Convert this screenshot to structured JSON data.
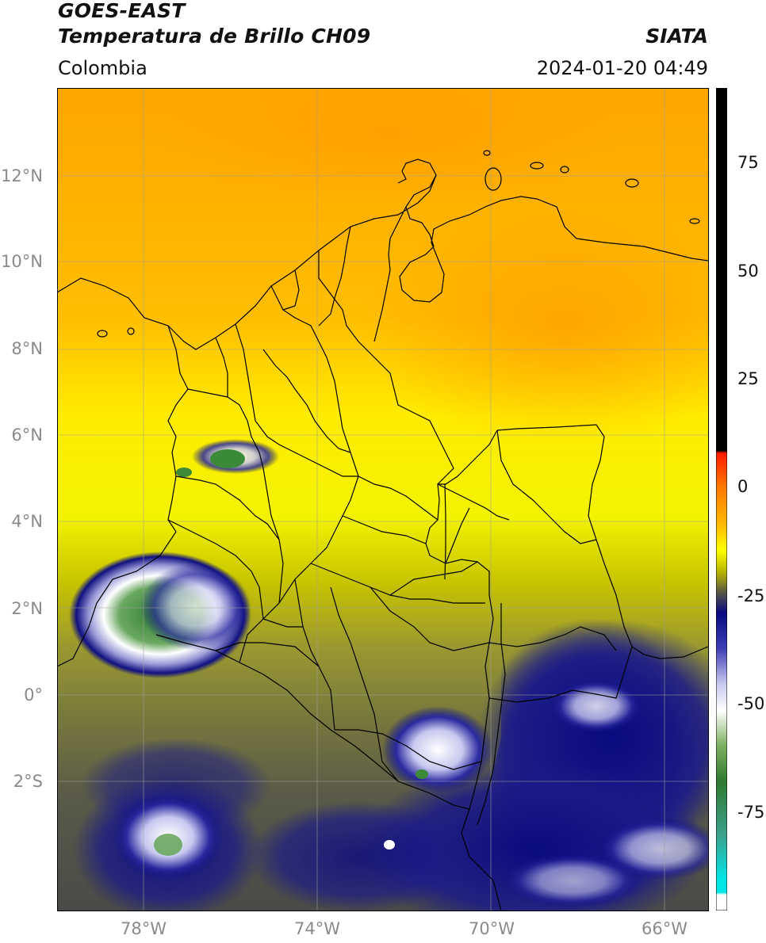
{
  "header": {
    "line1": "GOES-EAST",
    "line2": "Temperatura de Brillo CH09",
    "region": "Colombia",
    "source": "SIATA",
    "timestamp": "2024-01-20 04:49"
  },
  "map": {
    "lat_ticks": [
      {
        "value": 12,
        "label": "12°N"
      },
      {
        "value": 10,
        "label": "10°N"
      },
      {
        "value": 8,
        "label": "8°N"
      },
      {
        "value": 6,
        "label": "6°N"
      },
      {
        "value": 4,
        "label": "4°N"
      },
      {
        "value": 2,
        "label": "2°N"
      },
      {
        "value": 0,
        "label": "0°"
      },
      {
        "value": -2,
        "label": "2°S"
      }
    ],
    "lon_ticks": [
      {
        "value": -78,
        "label": "78°W"
      },
      {
        "value": -74,
        "label": "74°W"
      },
      {
        "value": -70,
        "label": "70°W"
      },
      {
        "value": -66,
        "label": "66°W"
      }
    ],
    "lon_range": [
      -80,
      -65
    ],
    "lat_range": [
      -5.2,
      14
    ]
  },
  "colorbar": {
    "range": [
      -95,
      90
    ],
    "ticks": [
      {
        "value": 75,
        "label": "75"
      },
      {
        "value": 50,
        "label": "50"
      },
      {
        "value": 25,
        "label": "25"
      },
      {
        "value": 0,
        "label": "0"
      },
      {
        "value": -25,
        "label": "-25"
      },
      {
        "value": -50,
        "label": "-50"
      },
      {
        "value": -75,
        "label": "-75"
      }
    ],
    "stops": [
      {
        "value": 90,
        "color": "#000000"
      },
      {
        "value": 8.5,
        "color": "#000000"
      },
      {
        "value": 8,
        "color": "#ff1a00"
      },
      {
        "value": 0,
        "color": "#ff7a00"
      },
      {
        "value": -8,
        "color": "#ffb800"
      },
      {
        "value": -14,
        "color": "#ffff00"
      },
      {
        "value": -19,
        "color": "#b5b300"
      },
      {
        "value": -24,
        "color": "#4d4d4d"
      },
      {
        "value": -28,
        "color": "#0a0a80"
      },
      {
        "value": -36,
        "color": "#3c3cb4"
      },
      {
        "value": -44,
        "color": "#c8c8f0"
      },
      {
        "value": -50,
        "color": "#ffffff"
      },
      {
        "value": -58,
        "color": "#7bb060"
      },
      {
        "value": -66,
        "color": "#2f7a2f"
      },
      {
        "value": -78,
        "color": "#3ca08c"
      },
      {
        "value": -88,
        "color": "#00e6e6"
      },
      {
        "value": -91,
        "color": "#00e6e6"
      },
      {
        "value": -91.5,
        "color": "#ffffff"
      },
      {
        "value": -95,
        "color": "#ffffff"
      }
    ]
  }
}
